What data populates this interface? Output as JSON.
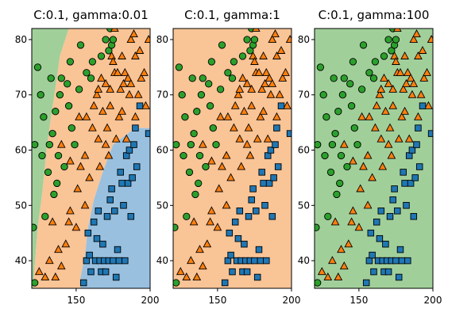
{
  "colors": {
    "class0_region": "#a1cf9a",
    "class1_region": "#f9c496",
    "class2_region": "#99c0df",
    "class0_marker": "#2ca02c",
    "class1_marker": "#ff7f0e",
    "class2_marker": "#1f77b4"
  },
  "chart_data": [
    {
      "type": "scatter",
      "title": "C:0.1, gamma:0.01",
      "xlim": [
        120,
        200
      ],
      "ylim": [
        35,
        82
      ],
      "xticks": [
        150,
        200
      ],
      "yticks": [
        40,
        50,
        60,
        70,
        80
      ],
      "regions": [
        {
          "class": 0,
          "polygon": [
            [
              120,
              35
            ],
            [
              120,
              82
            ],
            [
              145,
              82
            ],
            [
              139,
              77
            ],
            [
              137,
              73
            ],
            [
              133,
              66
            ],
            [
              130,
              60
            ],
            [
              127,
              52
            ],
            [
              124,
              46
            ],
            [
              122,
              39
            ],
            [
              121,
              35
            ]
          ]
        },
        {
          "class": 1,
          "polygon": [
            [
              121,
              35
            ],
            [
              122,
              39
            ],
            [
              124,
              46
            ],
            [
              127,
              52
            ],
            [
              130,
              60
            ],
            [
              133,
              66
            ],
            [
              137,
              73
            ],
            [
              139,
              77
            ],
            [
              145,
              82
            ],
            [
              200,
              82
            ],
            [
              200,
              64
            ],
            [
              190,
              64
            ],
            [
              175,
              61
            ],
            [
              168,
              56
            ],
            [
              162,
              51
            ],
            [
              158,
              46
            ],
            [
              156,
              41
            ],
            [
              153,
              37
            ],
            [
              153,
              35
            ]
          ]
        },
        {
          "class": 2,
          "polygon": [
            [
              153,
              35
            ],
            [
              153,
              37
            ],
            [
              156,
              41
            ],
            [
              158,
              46
            ],
            [
              162,
              51
            ],
            [
              168,
              56
            ],
            [
              175,
              61
            ],
            [
              190,
              64
            ],
            [
              200,
              64
            ],
            [
              200,
              35
            ]
          ]
        }
      ]
    },
    {
      "type": "scatter",
      "title": "C:0.1, gamma:1",
      "xlim": [
        120,
        200
      ],
      "ylim": [
        35,
        82
      ],
      "xticks": [
        150,
        200
      ],
      "yticks": [
        40,
        50,
        60,
        70,
        80
      ],
      "regions": [
        {
          "class": 1,
          "polygon": [
            [
              120,
              35
            ],
            [
              120,
              82
            ],
            [
              200,
              82
            ],
            [
              200,
              35
            ]
          ]
        }
      ]
    },
    {
      "type": "scatter",
      "title": "C:0.1, gamma:100",
      "xlim": [
        120,
        200
      ],
      "ylim": [
        35,
        82
      ],
      "xticks": [
        150,
        200
      ],
      "yticks": [
        40,
        50,
        60,
        70,
        80
      ],
      "regions": [
        {
          "class": 0,
          "polygon": [
            [
              120,
              35
            ],
            [
              120,
              82
            ],
            [
              200,
              82
            ],
            [
              200,
              35
            ]
          ]
        }
      ]
    }
  ],
  "points": {
    "class0": [
      [
        121,
        46
      ],
      [
        122,
        36
      ],
      [
        122,
        61
      ],
      [
        124,
        75
      ],
      [
        126,
        70
      ],
      [
        127,
        59
      ],
      [
        128,
        66
      ],
      [
        129,
        48
      ],
      [
        131,
        56
      ],
      [
        132,
        61
      ],
      [
        133,
        73
      ],
      [
        134,
        63
      ],
      [
        135,
        52
      ],
      [
        136,
        67
      ],
      [
        137,
        54
      ],
      [
        138,
        59
      ],
      [
        139,
        70
      ],
      [
        140,
        73
      ],
      [
        142,
        57
      ],
      [
        144,
        72
      ],
      [
        145,
        68
      ],
      [
        146,
        76
      ],
      [
        147,
        64
      ],
      [
        149,
        61
      ],
      [
        152,
        71
      ],
      [
        153,
        79
      ],
      [
        157,
        74
      ],
      [
        160,
        73
      ],
      [
        161,
        76
      ],
      [
        167,
        77
      ],
      [
        170,
        80
      ],
      [
        172,
        78
      ],
      [
        173,
        82
      ],
      [
        174,
        79
      ],
      [
        175,
        80
      ]
    ],
    "class1": [
      [
        125,
        38
      ],
      [
        129,
        37
      ],
      [
        132,
        40
      ],
      [
        134,
        47
      ],
      [
        136,
        37
      ],
      [
        138,
        42
      ],
      [
        140,
        39
      ],
      [
        140,
        61
      ],
      [
        143,
        43
      ],
      [
        145,
        47
      ],
      [
        146,
        49
      ],
      [
        146,
        58
      ],
      [
        150,
        46
      ],
      [
        151,
        53
      ],
      [
        152,
        66
      ],
      [
        153,
        57
      ],
      [
        156,
        50
      ],
      [
        156,
        59
      ],
      [
        157,
        66
      ],
      [
        159,
        55
      ],
      [
        161,
        64
      ],
      [
        162,
        68
      ],
      [
        164,
        70
      ],
      [
        165,
        62
      ],
      [
        165,
        71
      ],
      [
        166,
        57
      ],
      [
        167,
        73
      ],
      [
        168,
        67
      ],
      [
        170,
        61
      ],
      [
        170,
        72
      ],
      [
        171,
        64
      ],
      [
        172,
        59
      ],
      [
        173,
        68
      ],
      [
        173,
        71
      ],
      [
        174,
        77
      ],
      [
        175,
        76
      ],
      [
        176,
        74
      ],
      [
        176,
        82
      ],
      [
        177,
        62
      ],
      [
        178,
        74
      ],
      [
        179,
        66
      ],
      [
        180,
        71
      ],
      [
        181,
        67
      ],
      [
        181,
        77
      ],
      [
        182,
        72
      ],
      [
        183,
        74
      ],
      [
        184,
        62
      ],
      [
        185,
        73
      ],
      [
        186,
        70
      ],
      [
        187,
        72
      ],
      [
        187,
        80
      ],
      [
        189,
        81
      ],
      [
        190,
        77
      ],
      [
        190,
        66
      ],
      [
        192,
        70
      ],
      [
        193,
        78
      ],
      [
        194,
        73
      ],
      [
        196,
        74
      ],
      [
        197,
        68
      ],
      [
        199,
        80
      ]
    ],
    "class2": [
      [
        155,
        36
      ],
      [
        157,
        40
      ],
      [
        158,
        45
      ],
      [
        159,
        41
      ],
      [
        160,
        38
      ],
      [
        162,
        47
      ],
      [
        163,
        40
      ],
      [
        164,
        44
      ],
      [
        165,
        49
      ],
      [
        166,
        40
      ],
      [
        167,
        38
      ],
      [
        168,
        43
      ],
      [
        169,
        40
      ],
      [
        170,
        38
      ],
      [
        171,
        48
      ],
      [
        172,
        40
      ],
      [
        173,
        51
      ],
      [
        174,
        53
      ],
      [
        175,
        40
      ],
      [
        176,
        49
      ],
      [
        177,
        37
      ],
      [
        178,
        42
      ],
      [
        179,
        40
      ],
      [
        180,
        56
      ],
      [
        181,
        54
      ],
      [
        182,
        50
      ],
      [
        183,
        40
      ],
      [
        184,
        59
      ],
      [
        185,
        54
      ],
      [
        186,
        60
      ],
      [
        187,
        48
      ],
      [
        188,
        55
      ],
      [
        189,
        61
      ],
      [
        191,
        57
      ],
      [
        193,
        68
      ],
      [
        199,
        63
      ],
      [
        190,
        64
      ]
    ]
  }
}
